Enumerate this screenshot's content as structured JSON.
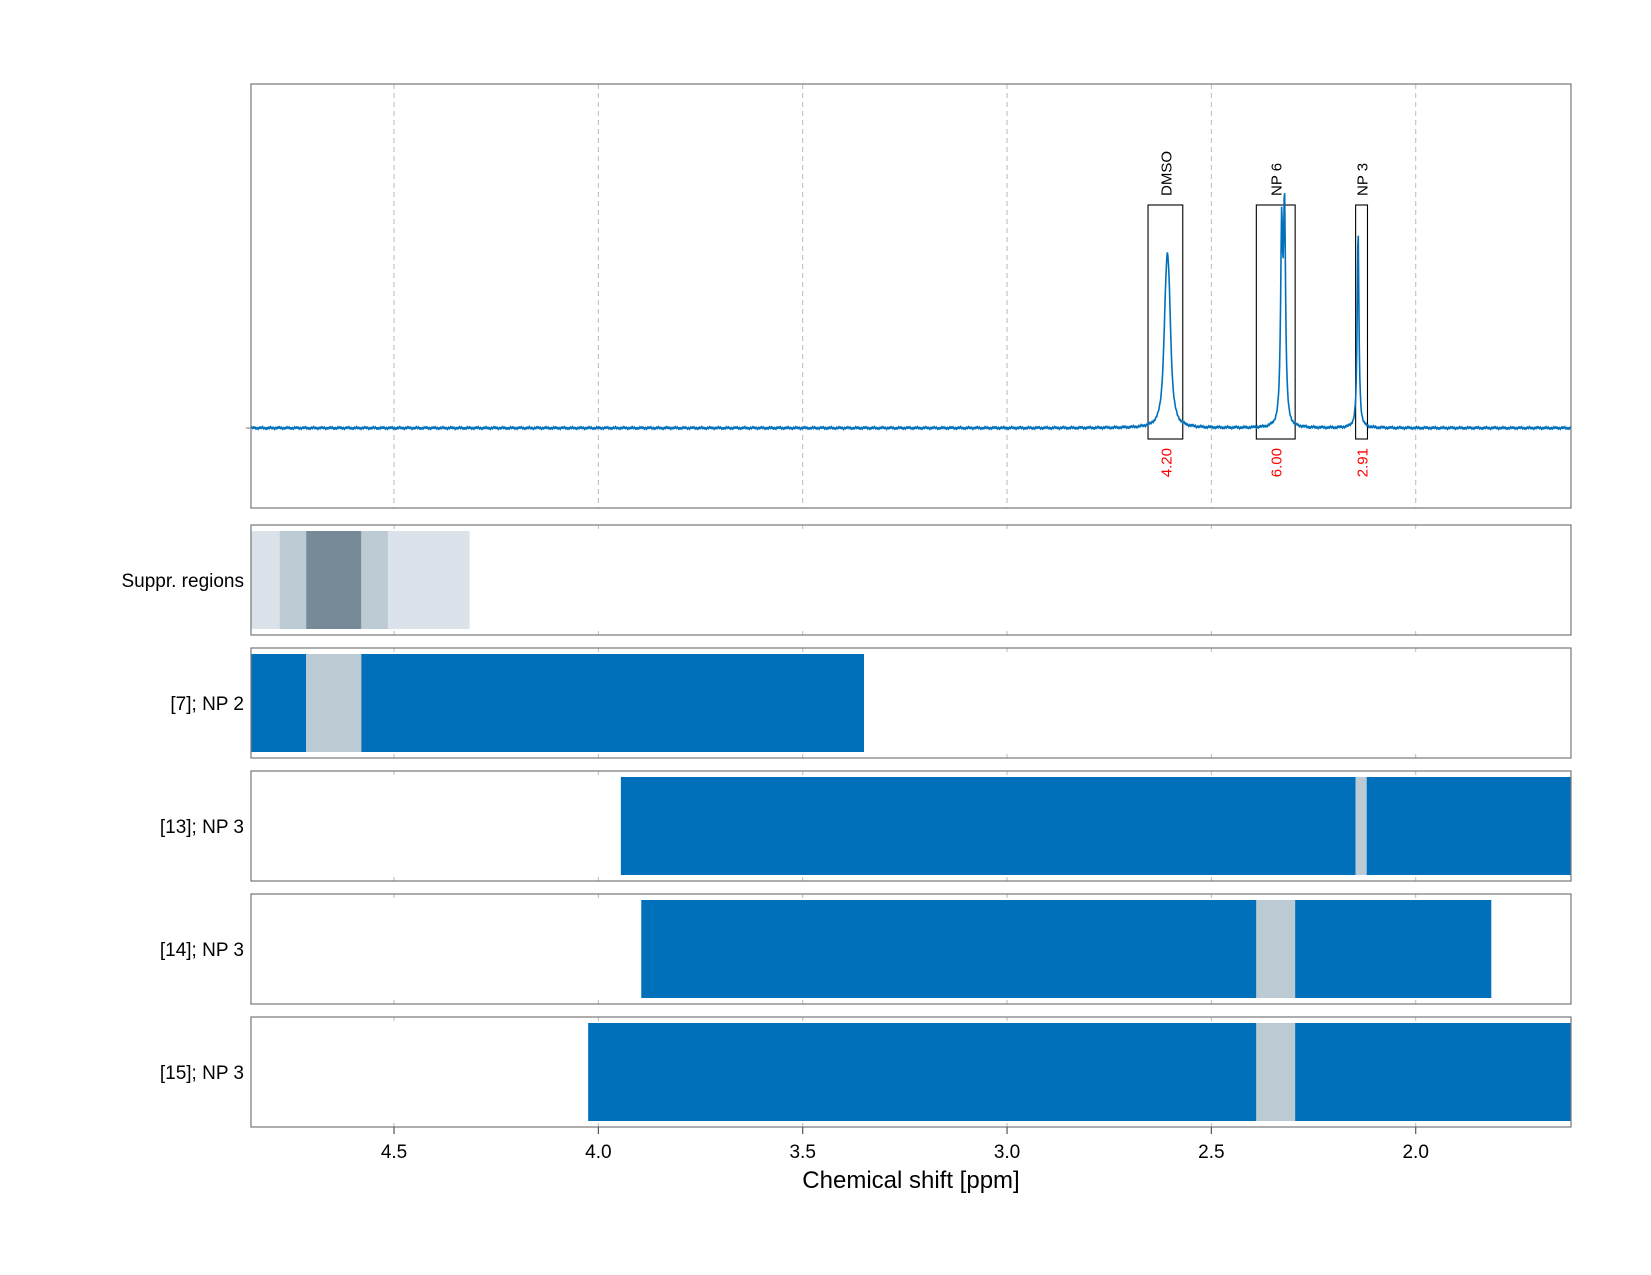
{
  "chart_data": {
    "type": "line",
    "xlabel": "Chemical shift [ppm]",
    "xlim": [
      4.85,
      1.62
    ],
    "x_ticks": [
      "4.5",
      "4.0",
      "3.5",
      "3.0",
      "2.5",
      "2.0"
    ],
    "x_tick_values": [
      4.5,
      4.0,
      3.5,
      3.0,
      2.5,
      2.0
    ],
    "grid": "dashed vertical gridlines at x ticks",
    "colors": {
      "spectrum": "#0070bb",
      "integral_label": "#ff0000",
      "bar": "#0070bb",
      "gap": "#bccbd3",
      "suppr_light": "#dbe2ea",
      "suppr_mid": "#bccbd3",
      "suppr_dark": "#778a97"
    },
    "spectrum": {
      "baseline": 0,
      "peaks": [
        {
          "x": 2.608,
          "height": 0.32,
          "width": 0.006
        },
        {
          "x": 2.603,
          "height": 0.22,
          "width": 0.006
        },
        {
          "x": 2.613,
          "height": 0.16,
          "width": 0.006
        },
        {
          "x": 2.328,
          "height": 0.59,
          "width": 0.003
        },
        {
          "x": 2.321,
          "height": 0.66,
          "width": 0.003
        },
        {
          "x": 2.141,
          "height": 0.62,
          "width": 0.0025
        }
      ]
    },
    "peak_regions": [
      {
        "label": "DMSO",
        "x_from": 2.655,
        "x_to": 2.57,
        "integral": "4.20"
      },
      {
        "label": "NP 6",
        "x_from": 2.39,
        "x_to": 2.295,
        "integral": "6.00"
      },
      {
        "label": "NP 3",
        "x_from": 2.147,
        "x_to": 2.118,
        "integral": "2.91"
      }
    ],
    "tracks": [
      {
        "label": "Suppr. regions",
        "segments": [
          {
            "from": 4.85,
            "to": 4.78,
            "shade": "suppr_light"
          },
          {
            "from": 4.78,
            "to": 4.715,
            "shade": "suppr_mid"
          },
          {
            "from": 4.715,
            "to": 4.58,
            "shade": "suppr_dark"
          },
          {
            "from": 4.58,
            "to": 4.515,
            "shade": "suppr_mid"
          },
          {
            "from": 4.515,
            "to": 4.315,
            "shade": "suppr_light"
          }
        ]
      },
      {
        "label": "[7]; NP 2",
        "segments": [
          {
            "from": 4.85,
            "to": 4.715,
            "shade": "bar"
          },
          {
            "from": 4.715,
            "to": 4.58,
            "shade": "gap"
          },
          {
            "from": 4.58,
            "to": 3.35,
            "shade": "bar"
          }
        ]
      },
      {
        "label": "[13]; NP 3",
        "segments": [
          {
            "from": 3.945,
            "to": 2.147,
            "shade": "bar"
          },
          {
            "from": 2.147,
            "to": 2.12,
            "shade": "gap"
          },
          {
            "from": 2.12,
            "to": 1.62,
            "shade": "bar"
          }
        ]
      },
      {
        "label": "[14]; NP 3",
        "segments": [
          {
            "from": 3.895,
            "to": 2.39,
            "shade": "bar"
          },
          {
            "from": 2.39,
            "to": 2.295,
            "shade": "gap"
          },
          {
            "from": 2.295,
            "to": 1.815,
            "shade": "bar"
          }
        ]
      },
      {
        "label": "[15]; NP 3",
        "segments": [
          {
            "from": 4.025,
            "to": 2.39,
            "shade": "bar"
          },
          {
            "from": 2.39,
            "to": 2.295,
            "shade": "gap"
          },
          {
            "from": 2.295,
            "to": 1.62,
            "shade": "bar"
          }
        ]
      }
    ]
  }
}
